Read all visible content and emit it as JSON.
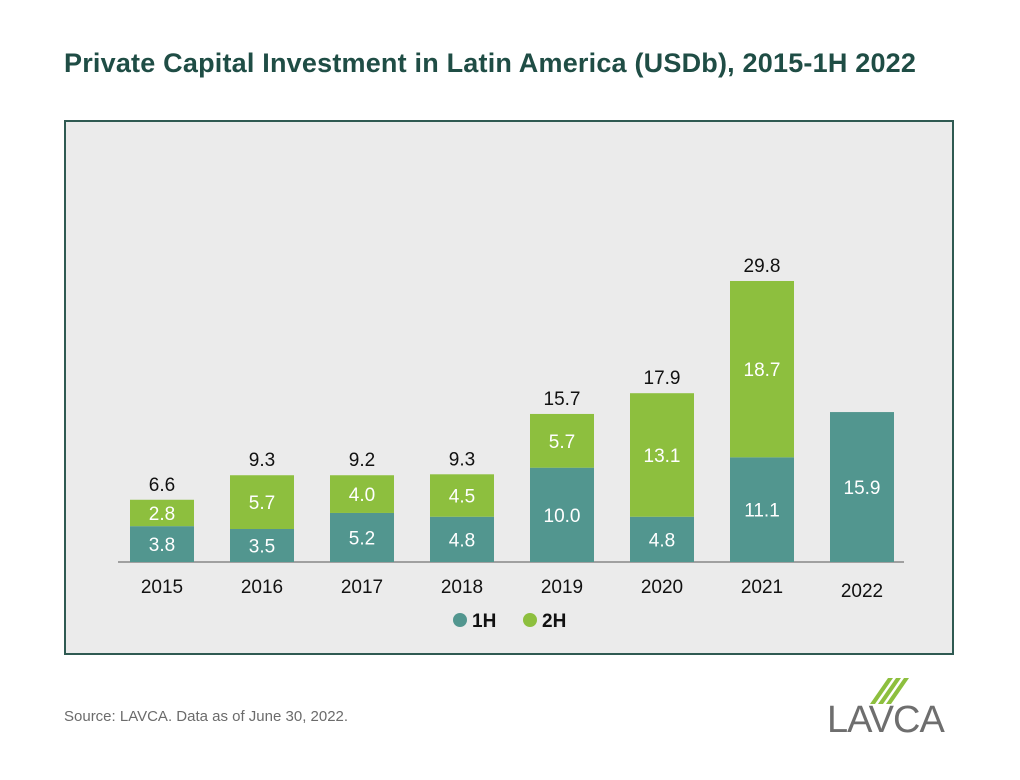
{
  "title": "Private Capital Investment in Latin America (USDb), 2015-1H 2022",
  "source": "Source: LAVCA. Data as of June 30, 2022.",
  "logo_text": "LAVCA",
  "colors": {
    "h1": "#52968f",
    "h2": "#8dbf3e",
    "title": "#1f4d45",
    "frame": "#2f5a52",
    "background": "#ebebeb"
  },
  "chart_data": {
    "type": "bar",
    "stacked": true,
    "categories": [
      "2015",
      "2016",
      "2017",
      "2018",
      "2019",
      "2020",
      "2021",
      "2022"
    ],
    "series": [
      {
        "name": "1H",
        "values": [
          3.8,
          3.5,
          5.2,
          4.8,
          10.0,
          4.8,
          11.1,
          15.9
        ],
        "labels": [
          "3.8",
          "3.5",
          "5.2",
          "4.8",
          "10.0",
          "4.8",
          "11.1",
          "15.9"
        ]
      },
      {
        "name": "2H",
        "values": [
          2.8,
          5.7,
          4.0,
          4.5,
          5.7,
          13.1,
          18.7,
          null
        ],
        "labels": [
          "2.8",
          "5.7",
          "4.0",
          "4.5",
          "5.7",
          "13.1",
          "18.7",
          ""
        ]
      }
    ],
    "totals": [
      "6.6",
      "9.3",
      "9.2",
      "9.3",
      "15.7",
      "17.9",
      "29.8",
      ""
    ],
    "legend_position": "bottom-center",
    "grid": false,
    "ylim": [
      0,
      30
    ]
  }
}
